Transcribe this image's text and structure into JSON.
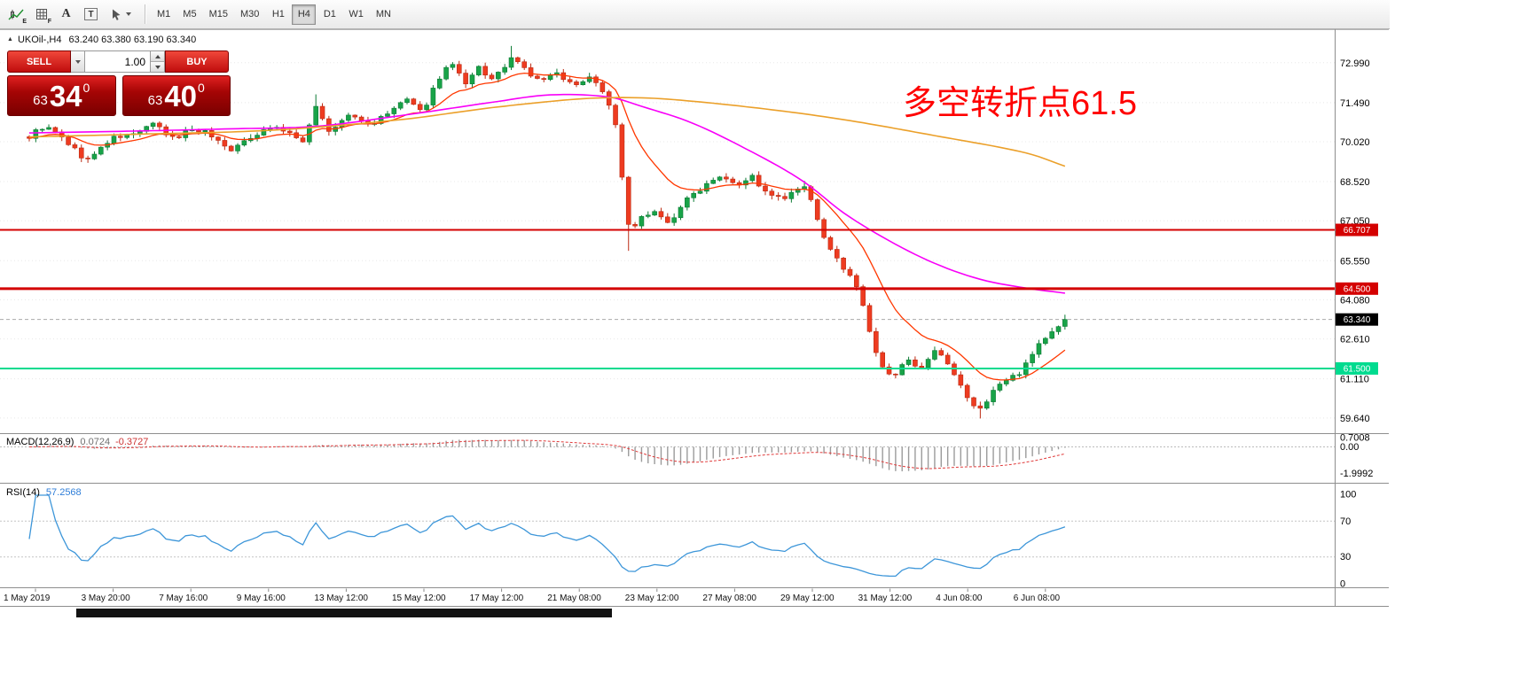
{
  "toolbar": {
    "icons": [
      {
        "name": "indicators",
        "sub": "E"
      },
      {
        "name": "grid",
        "sub": "F"
      },
      {
        "name": "font",
        "glyph": "A"
      },
      {
        "name": "text-box",
        "glyph": "T"
      },
      {
        "name": "crosshair",
        "caret": "v"
      }
    ],
    "timeframes": [
      "M1",
      "M5",
      "M15",
      "M30",
      "H1",
      "H4",
      "D1",
      "W1",
      "MN"
    ],
    "active_timeframe": "H4"
  },
  "symbol_bar": {
    "collapse_arrow": "▲",
    "title": "UKOil-,H4",
    "ohlc": "63.240 63.380 63.190 63.340"
  },
  "trade_panel": {
    "sell_label": "SELL",
    "buy_label": "BUY",
    "volume": "1.00",
    "sell_price": {
      "small": "63",
      "big": "34",
      "sup": "0"
    },
    "buy_price": {
      "small": "63",
      "big": "40",
      "sup": "0"
    }
  },
  "annotation": {
    "text": "多空转折点61.5",
    "color": "#ff0000"
  },
  "chart_data": {
    "type": "candlestick",
    "symbol": "UKOil-",
    "timeframe": "H4",
    "ohlc_current": {
      "open": 63.24,
      "high": 63.38,
      "low": 63.19,
      "close": 63.34
    },
    "y_axis_labels": [
      "72.990",
      "71.490",
      "70.020",
      "68.520",
      "67.050",
      "65.550",
      "64.080",
      "62.610",
      "61.110",
      "59.640"
    ],
    "hlines": [
      {
        "label": "66.707",
        "price": 66.707,
        "color": "#d40000",
        "width": 2
      },
      {
        "label": "64.500",
        "price": 64.5,
        "color": "#d40000",
        "width": 3
      },
      {
        "label": "61.500",
        "price": 61.5,
        "color": "#00db8f",
        "width": 2
      }
    ],
    "current_price": 63.34,
    "current_price_label": "63.340",
    "price_anchors": [
      [
        0,
        70.2
      ],
      [
        2,
        70.55
      ],
      [
        4,
        70.35
      ],
      [
        6,
        69.95
      ],
      [
        9,
        69.35
      ],
      [
        11,
        69.8
      ],
      [
        13,
        70.15
      ],
      [
        16,
        70.3
      ],
      [
        19,
        70.65
      ],
      [
        22,
        70.15
      ],
      [
        25,
        70.5
      ],
      [
        28,
        70.25
      ],
      [
        31,
        69.75
      ],
      [
        34,
        70.2
      ],
      [
        37,
        70.55
      ],
      [
        40,
        70.35
      ],
      [
        42,
        70.0
      ],
      [
        44,
        71.35
      ],
      [
        46,
        70.4
      ],
      [
        49,
        71.0
      ],
      [
        52,
        70.7
      ],
      [
        55,
        71.05
      ],
      [
        58,
        71.6
      ],
      [
        60,
        71.15
      ],
      [
        63,
        72.45
      ],
      [
        65,
        72.9
      ],
      [
        67,
        72.15
      ],
      [
        69,
        72.8
      ],
      [
        71,
        72.35
      ],
      [
        74,
        73.1
      ],
      [
        76,
        72.75
      ],
      [
        78,
        72.35
      ],
      [
        81,
        72.55
      ],
      [
        84,
        72.15
      ],
      [
        86,
        72.45
      ],
      [
        88,
        71.9
      ],
      [
        90,
        70.6
      ],
      [
        92,
        66.9
      ],
      [
        94,
        67.15
      ],
      [
        96,
        67.45
      ],
      [
        98,
        66.95
      ],
      [
        100,
        67.6
      ],
      [
        103,
        68.25
      ],
      [
        106,
        68.75
      ],
      [
        109,
        68.45
      ],
      [
        111,
        68.7
      ],
      [
        113,
        68.1
      ],
      [
        116,
        67.9
      ],
      [
        119,
        68.25
      ],
      [
        121,
        67.1
      ],
      [
        123,
        65.9
      ],
      [
        125,
        65.3
      ],
      [
        127,
        64.6
      ],
      [
        129,
        62.9
      ],
      [
        131,
        61.5
      ],
      [
        133,
        61.25
      ],
      [
        135,
        61.9
      ],
      [
        137,
        61.45
      ],
      [
        139,
        62.1
      ],
      [
        141,
        61.6
      ],
      [
        143,
        60.8
      ],
      [
        145,
        60.1
      ],
      [
        146,
        59.95
      ],
      [
        148,
        60.7
      ],
      [
        150,
        61.05
      ],
      [
        152,
        61.35
      ],
      [
        154,
        62.1
      ],
      [
        156,
        62.65
      ],
      [
        158,
        63.05
      ],
      [
        159,
        63.34
      ]
    ],
    "ma_mid_anchors": [
      [
        0,
        70.35
      ],
      [
        16,
        70.42
      ],
      [
        30,
        70.5
      ],
      [
        44,
        70.6
      ],
      [
        57,
        71.0
      ],
      [
        71,
        71.5
      ],
      [
        80,
        71.78
      ],
      [
        89,
        71.7
      ],
      [
        94,
        71.35
      ],
      [
        102,
        70.7
      ],
      [
        112,
        69.5
      ],
      [
        119,
        68.5
      ],
      [
        125,
        67.35
      ],
      [
        132,
        66.3
      ],
      [
        139,
        65.45
      ],
      [
        146,
        64.85
      ],
      [
        153,
        64.52
      ],
      [
        159,
        64.33
      ]
    ],
    "ma_slow_anchors": [
      [
        0,
        70.2
      ],
      [
        16,
        70.3
      ],
      [
        37,
        70.45
      ],
      [
        57,
        70.85
      ],
      [
        71,
        71.3
      ],
      [
        84,
        71.62
      ],
      [
        91,
        71.68
      ],
      [
        98,
        71.62
      ],
      [
        112,
        71.28
      ],
      [
        125,
        70.85
      ],
      [
        139,
        70.25
      ],
      [
        153,
        69.6
      ],
      [
        159,
        69.1
      ]
    ],
    "macd": {
      "name": "MACD(12,26,9)",
      "value_main": "0.0724",
      "value_signal": "-0.3727",
      "axis": [
        "0.7008",
        "0.00",
        "-1.9992"
      ]
    },
    "rsi": {
      "name": "RSI(14)",
      "value": "57.2568",
      "axis": [
        "100",
        "70",
        "30",
        "0"
      ],
      "levels": [
        70,
        30
      ]
    },
    "x_axis_labels": [
      "1 May 2019",
      "3 May 20:00",
      "7 May 16:00",
      "9 May 16:00",
      "13 May 12:00",
      "15 May 12:00",
      "17 May 12:00",
      "21 May 08:00",
      "23 May 12:00",
      "27 May 08:00",
      "29 May 12:00",
      "31 May 12:00",
      "4 Jun 08:00",
      "6 Jun 08:00"
    ],
    "colors": {
      "up": "#18a348",
      "up_border": "#0b7a33",
      "down": "#ee3b20",
      "down_border": "#bb2a12",
      "ma_fast": "#ff3800",
      "ma_mid": "#f800f8",
      "ma_slow": "#eba02a",
      "macd_hist": "#9b9b9b",
      "macd_signal": "#e03a3a",
      "rsi": "#3d96d9",
      "grid": "#e8e8e8",
      "axis_text": "#000000"
    }
  }
}
